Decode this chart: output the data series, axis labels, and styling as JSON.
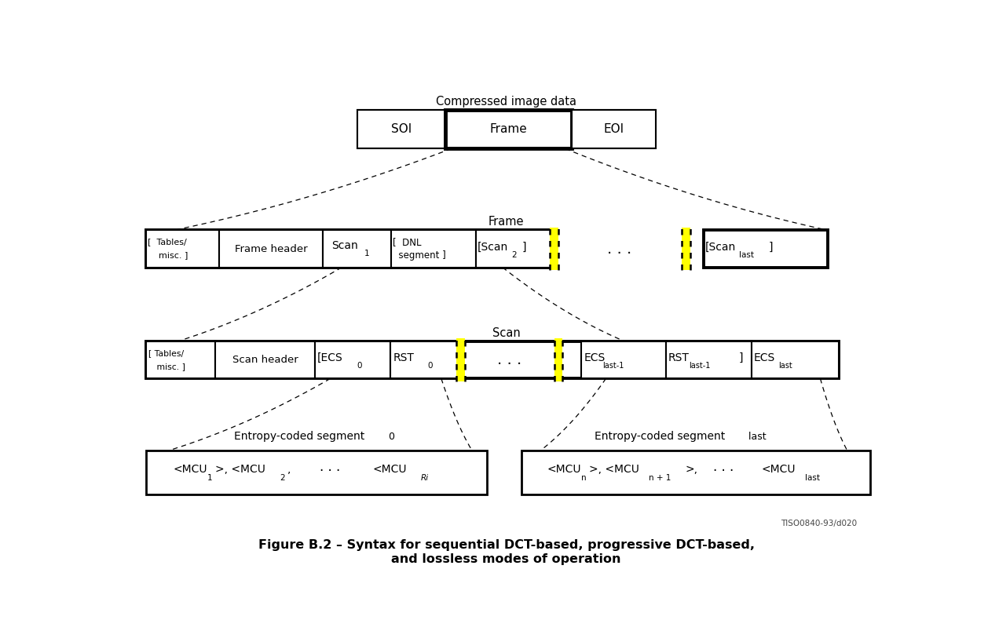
{
  "figsize": [
    12.58,
    8.18
  ],
  "dpi": 100,
  "bg": "#ffffff",
  "R1Y": 0.855,
  "R1H": 0.078,
  "R2Y": 0.615,
  "R2H": 0.075,
  "R3Y": 0.39,
  "R3H": 0.075,
  "R4Y": 0.155,
  "R4H": 0.09,
  "title1": "Figure B.2 – Syntax for sequential DCT-based, progressive DCT-based,",
  "title2": "and lossless modes of operation",
  "watermark": "TISO0840-93/d020"
}
